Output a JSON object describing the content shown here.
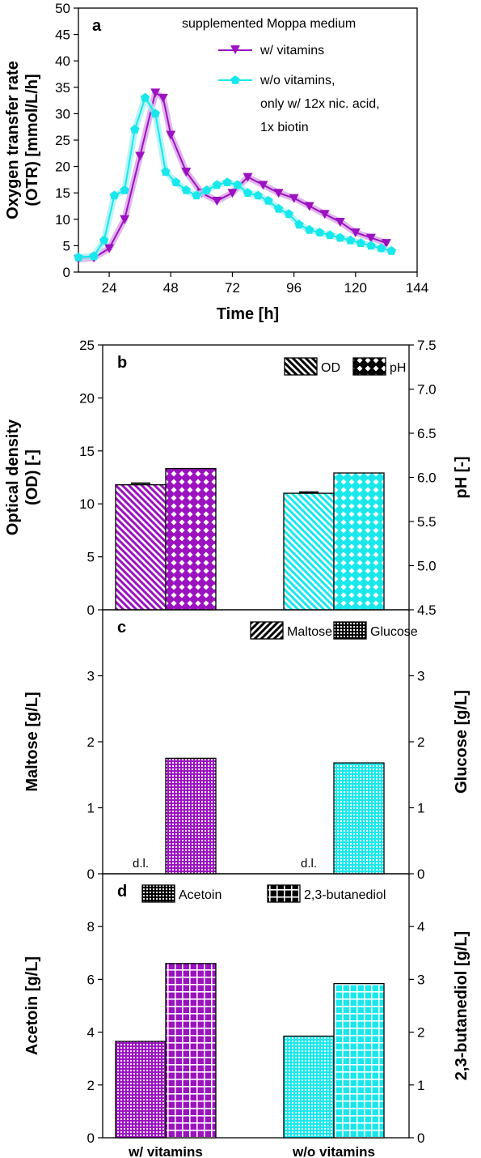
{
  "colors": {
    "with_vitamins": "#9b12c0",
    "without_vitamins": "#18e8ec",
    "with_vitamins_band": "#d9a3e8",
    "without_vitamins_band": "#a9f1f3"
  },
  "chart_data": [
    {
      "panel": "a",
      "type": "line",
      "xlabel": "Time   [h]",
      "ylabel_lines": [
        "Oxygen transfer rate",
        "(OTR)   [mmol/L/h]"
      ],
      "xlim": [
        12,
        144
      ],
      "ylim": [
        0,
        50
      ],
      "xticks": [
        24,
        48,
        72,
        96,
        120,
        144
      ],
      "yticks": [
        0,
        5,
        10,
        15,
        20,
        25,
        30,
        35,
        40,
        45,
        50
      ],
      "legend_title": "supplemented Moppa medium",
      "series": [
        {
          "name": "w/ vitamins",
          "marker": "triangle-down",
          "x": [
            12,
            18,
            24,
            30,
            36,
            42,
            45,
            48,
            54,
            60,
            66,
            72,
            78,
            84,
            90,
            96,
            102,
            108,
            114,
            120,
            126,
            132
          ],
          "y": [
            2.5,
            2.7,
            4.5,
            10.0,
            22.0,
            34.0,
            33.0,
            26.0,
            19.0,
            15.0,
            13.5,
            15.0,
            18.0,
            16.5,
            15.0,
            14.0,
            12.5,
            11.0,
            9.5,
            7.5,
            6.5,
            5.5
          ]
        },
        {
          "name_lines": [
            "w/o vitamins,",
            "only w/ 12x nic. acid,",
            "1x biotin"
          ],
          "marker": "pentagon",
          "x": [
            12,
            18,
            22,
            26,
            30,
            34,
            38,
            42,
            46,
            50,
            54,
            58,
            62,
            66,
            70,
            74,
            78,
            82,
            86,
            90,
            94,
            98,
            102,
            106,
            110,
            114,
            118,
            122,
            126,
            130,
            134
          ],
          "y": [
            2.8,
            3.0,
            6.0,
            14.5,
            15.5,
            27.0,
            33.0,
            30.0,
            19.0,
            17.0,
            15.5,
            14.5,
            15.5,
            16.5,
            17.0,
            16.5,
            15.0,
            14.5,
            13.5,
            12.0,
            11.0,
            9.0,
            8.0,
            7.5,
            7.0,
            6.5,
            6.0,
            5.5,
            5.0,
            4.5,
            4.0
          ]
        }
      ]
    },
    {
      "panel": "b",
      "type": "bar",
      "categories": [
        "w/ vitamins",
        "w/o vitamins"
      ],
      "ylabel_left_lines": [
        "Optical density",
        "(OD)   [-]"
      ],
      "ylabel_right": "pH   [-]",
      "ylim_left": [
        0,
        25
      ],
      "ylim_right": [
        4.5,
        7.5
      ],
      "yticks_left": [
        0,
        5,
        10,
        15,
        20,
        25
      ],
      "yticks_right": [
        "4.5",
        "5.0",
        "5.5",
        "6.0",
        "6.5",
        "7.0",
        "7.5"
      ],
      "series": [
        {
          "name": "OD",
          "axis": "left",
          "pattern": "diag-down",
          "values": [
            11.8,
            11.0
          ],
          "errors": [
            0.15,
            0.1
          ]
        },
        {
          "name": "pH",
          "axis": "right",
          "pattern": "crosshatch",
          "values": [
            6.1,
            6.05
          ]
        }
      ]
    },
    {
      "panel": "c",
      "type": "bar",
      "categories": [
        "w/ vitamins",
        "w/o vitamins"
      ],
      "ylabel_left": "Maltose   [g/L]",
      "ylabel_right": "Glucose   [g/L]",
      "ylim_left": [
        0,
        4
      ],
      "ylim_right": [
        0,
        4
      ],
      "yticks_left": [
        0,
        1,
        2,
        3
      ],
      "yticks_right": [
        0,
        1,
        2,
        3
      ],
      "below_detection_label": "d.l.",
      "series": [
        {
          "name": "Maltose",
          "axis": "left",
          "pattern": "diag-up",
          "values": [
            0,
            0
          ]
        },
        {
          "name": "Glucose",
          "axis": "right",
          "pattern": "finegrid",
          "values": [
            1.75,
            1.68
          ]
        }
      ]
    },
    {
      "panel": "d",
      "type": "bar",
      "categories": [
        "w/ vitamins",
        "w/o vitamins"
      ],
      "ylabel_left": "Acetoin   [g/L]",
      "ylabel_right": "2,3-butanediol   [g/L]",
      "ylim_left": [
        0,
        10
      ],
      "ylim_right": [
        0,
        5
      ],
      "yticks_left": [
        0,
        2,
        4,
        6,
        8
      ],
      "yticks_right": [
        0,
        1,
        2,
        3,
        4
      ],
      "series": [
        {
          "name": "Acetoin",
          "axis": "left",
          "pattern": "dots",
          "values": [
            3.65,
            3.85
          ]
        },
        {
          "name": "2,3-butanediol",
          "axis": "right",
          "pattern": "squares",
          "values": [
            3.3,
            2.92
          ]
        }
      ]
    }
  ]
}
